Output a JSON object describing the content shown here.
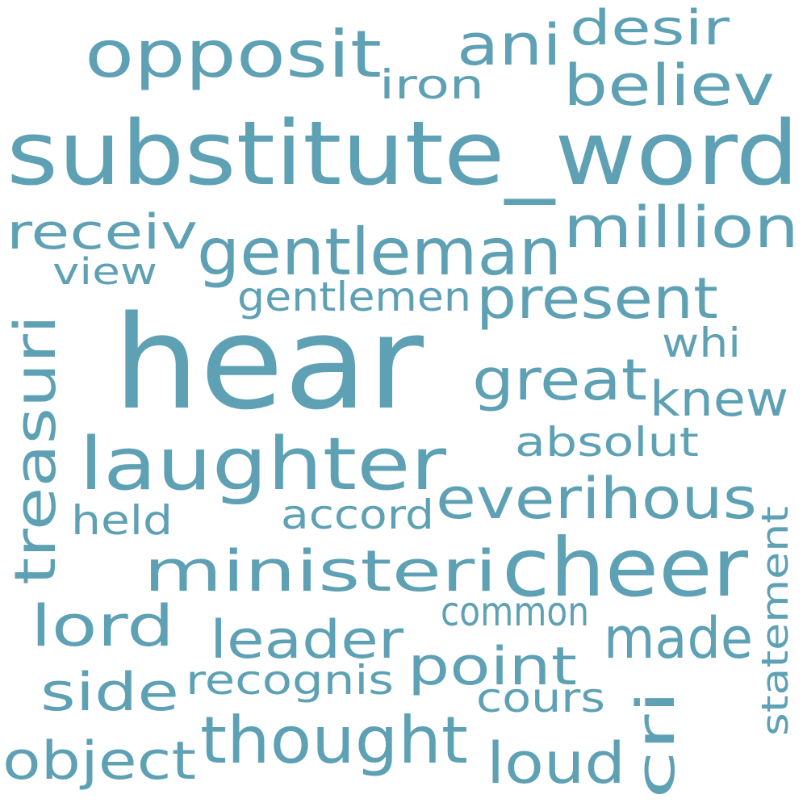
{
  "color": "#5ea1b4",
  "background": "#ffffff",
  "words": [
    {
      "key": "hear",
      "text": "hear"
    },
    {
      "key": "substitute_word",
      "text": "substitute_word"
    },
    {
      "key": "cheer",
      "text": "cheer"
    },
    {
      "key": "laughter",
      "text": "laughter"
    },
    {
      "key": "gentleman",
      "text": "gentleman"
    },
    {
      "key": "thought",
      "text": "thought"
    },
    {
      "key": "opposit",
      "text": "opposit"
    },
    {
      "key": "ministeri",
      "text": "ministeri"
    },
    {
      "key": "treasuri",
      "text": "treasuri"
    },
    {
      "key": "everihous",
      "text": "everihous"
    },
    {
      "key": "present",
      "text": "present"
    },
    {
      "key": "million",
      "text": "million"
    },
    {
      "key": "great",
      "text": "great"
    },
    {
      "key": "believ",
      "text": "believ"
    },
    {
      "key": "ani",
      "text": "ani"
    },
    {
      "key": "desir",
      "text": "desir"
    },
    {
      "key": "lord",
      "text": "lord"
    },
    {
      "key": "leader",
      "text": "leader"
    },
    {
      "key": "made",
      "text": "made"
    },
    {
      "key": "point",
      "text": "point"
    },
    {
      "key": "object",
      "text": "object"
    },
    {
      "key": "side",
      "text": "side"
    },
    {
      "key": "knew",
      "text": "knew"
    },
    {
      "key": "receiv",
      "text": "receiv"
    },
    {
      "key": "loud",
      "text": "loud"
    },
    {
      "key": "cri",
      "text": "cri"
    },
    {
      "key": "statement",
      "text": "statement"
    },
    {
      "key": "gentlemen",
      "text": "gentlemen"
    },
    {
      "key": "absolut",
      "text": "absolut"
    },
    {
      "key": "accord",
      "text": "accord"
    },
    {
      "key": "recognis",
      "text": "recognis"
    },
    {
      "key": "common",
      "text": "common"
    },
    {
      "key": "cours",
      "text": "cours"
    },
    {
      "key": "held",
      "text": "held"
    },
    {
      "key": "view",
      "text": "view"
    },
    {
      "key": "iron",
      "text": "iron"
    },
    {
      "key": "whi",
      "text": "whi"
    }
  ]
}
